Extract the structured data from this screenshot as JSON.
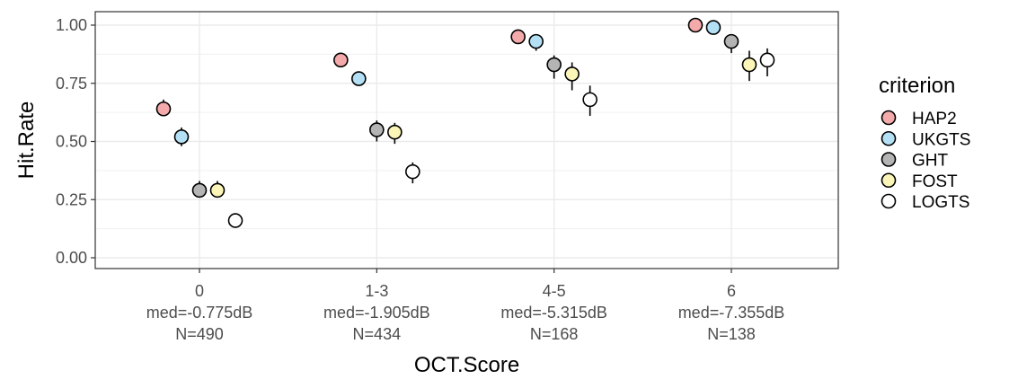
{
  "chart_data": {
    "type": "scatter",
    "xlabel": "OCT.Score",
    "ylabel": "Hit.Rate",
    "ylim": [
      0,
      1
    ],
    "yticks": [
      "0.00",
      "0.25",
      "0.50",
      "0.75",
      "1.00"
    ],
    "grid": true,
    "legend_position": "right",
    "legend_title": "criterion",
    "categories": [
      {
        "name": "0",
        "median": "med=-0.775dB",
        "n": "N=490"
      },
      {
        "name": "1-3",
        "median": "med=-1.905dB",
        "n": "N=434"
      },
      {
        "name": "4-5",
        "median": "med=-5.315dB",
        "n": "N=168"
      },
      {
        "name": "6",
        "median": "med=-7.355dB",
        "n": "N=138"
      }
    ],
    "series": [
      {
        "name": "HAP2",
        "color": "#f4aaaa",
        "values": [
          0.64,
          0.85,
          0.95,
          1.0
        ],
        "lower": [
          0.61,
          0.83,
          0.94,
          0.99
        ],
        "upper": [
          0.68,
          0.87,
          0.96,
          1.0
        ]
      },
      {
        "name": "UKGTS",
        "color": "#b3e0f5",
        "values": [
          0.52,
          0.77,
          0.93,
          0.99
        ],
        "lower": [
          0.48,
          0.74,
          0.89,
          0.98
        ],
        "upper": [
          0.56,
          0.8,
          0.95,
          1.0
        ]
      },
      {
        "name": "GHT",
        "color": "#b4b4b4",
        "values": [
          0.29,
          0.55,
          0.83,
          0.93
        ],
        "lower": [
          0.26,
          0.5,
          0.77,
          0.88
        ],
        "upper": [
          0.33,
          0.59,
          0.87,
          0.96
        ]
      },
      {
        "name": "FOST",
        "color": "#fbf5b8",
        "values": [
          0.29,
          0.54,
          0.79,
          0.83
        ],
        "lower": [
          0.26,
          0.49,
          0.72,
          0.76
        ],
        "upper": [
          0.33,
          0.58,
          0.84,
          0.89
        ]
      },
      {
        "name": "LOGTS",
        "color": "#ffffff",
        "values": [
          0.16,
          0.37,
          0.68,
          0.85
        ],
        "lower": [
          0.13,
          0.32,
          0.61,
          0.78
        ],
        "upper": [
          0.19,
          0.41,
          0.74,
          0.9
        ]
      }
    ]
  }
}
